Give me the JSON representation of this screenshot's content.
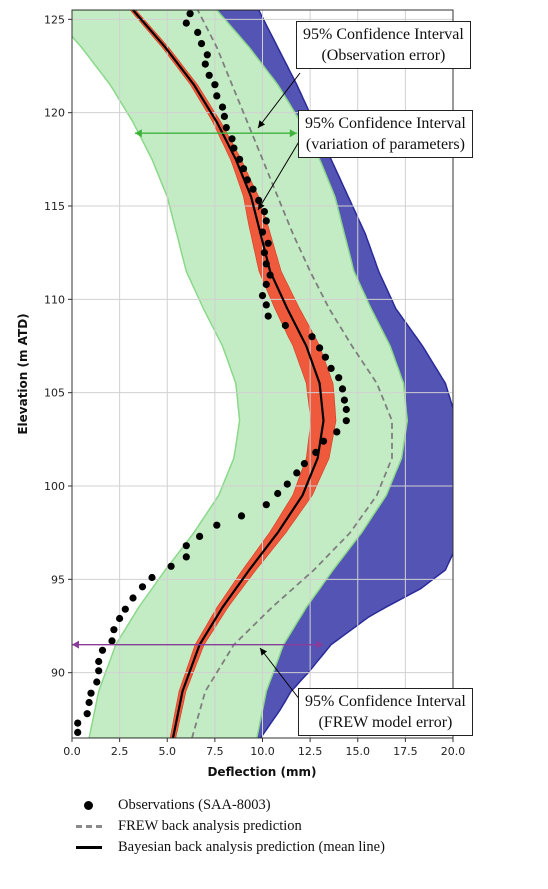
{
  "chart_data": {
    "type": "scatter",
    "xlabel": "Deflection (mm)",
    "ylabel": "Elevation (m ATD)",
    "xlim": [
      0,
      20
    ],
    "ylim": [
      86.5,
      125.5
    ],
    "xticks": [
      "0.0",
      "2.5",
      "5.0",
      "7.5",
      "10.0",
      "12.5",
      "15.0",
      "17.5",
      "20.0"
    ],
    "yticks": [
      "90",
      "95",
      "100",
      "105",
      "110",
      "115",
      "120",
      "125"
    ],
    "grid": true,
    "legend_position": "bottom",
    "series": [
      {
        "name": "Observations (SAA-8003)",
        "kind": "points",
        "color": "#000000",
        "points": [
          [
            6.2,
            125.3
          ],
          [
            6.0,
            124.8
          ],
          [
            6.6,
            124.3
          ],
          [
            6.8,
            123.7
          ],
          [
            7.1,
            123.1
          ],
          [
            7.0,
            122.6
          ],
          [
            7.2,
            122.0
          ],
          [
            7.5,
            121.5
          ],
          [
            7.6,
            120.9
          ],
          [
            7.9,
            120.3
          ],
          [
            8.0,
            119.8
          ],
          [
            8.1,
            119.2
          ],
          [
            8.4,
            118.6
          ],
          [
            8.5,
            118.1
          ],
          [
            8.8,
            117.5
          ],
          [
            9.0,
            117.0
          ],
          [
            9.2,
            116.4
          ],
          [
            9.5,
            115.9
          ],
          [
            9.8,
            115.3
          ],
          [
            10.1,
            114.7
          ],
          [
            10.2,
            114.2
          ],
          [
            10.0,
            113.6
          ],
          [
            10.3,
            113.0
          ],
          [
            10.1,
            112.5
          ],
          [
            10.2,
            111.9
          ],
          [
            10.4,
            111.3
          ],
          [
            10.2,
            110.8
          ],
          [
            10.0,
            110.2
          ],
          [
            10.2,
            109.7
          ],
          [
            10.3,
            109.1
          ],
          [
            11.2,
            108.6
          ],
          [
            12.6,
            108.0
          ],
          [
            13.0,
            107.4
          ],
          [
            13.3,
            106.9
          ],
          [
            13.6,
            106.3
          ],
          [
            14.0,
            105.8
          ],
          [
            14.2,
            105.2
          ],
          [
            14.3,
            104.6
          ],
          [
            14.4,
            104.1
          ],
          [
            14.4,
            103.5
          ],
          [
            13.9,
            102.9
          ],
          [
            13.2,
            102.4
          ],
          [
            12.8,
            101.8
          ],
          [
            12.2,
            101.2
          ],
          [
            11.8,
            100.7
          ],
          [
            11.3,
            100.1
          ],
          [
            10.8,
            99.6
          ],
          [
            10.2,
            99.0
          ],
          [
            8.9,
            98.4
          ],
          [
            7.6,
            97.9
          ],
          [
            6.7,
            97.3
          ],
          [
            6.0,
            96.8
          ],
          [
            6.0,
            96.2
          ],
          [
            5.2,
            95.7
          ],
          [
            4.2,
            95.1
          ],
          [
            3.7,
            94.6
          ],
          [
            3.2,
            94.0
          ],
          [
            2.8,
            93.4
          ],
          [
            2.5,
            92.9
          ],
          [
            2.2,
            92.3
          ],
          [
            2.1,
            91.7
          ],
          [
            1.6,
            91.2
          ],
          [
            1.4,
            90.6
          ],
          [
            1.4,
            90.1
          ],
          [
            1.3,
            89.5
          ],
          [
            1.0,
            88.9
          ],
          [
            0.9,
            88.4
          ],
          [
            0.8,
            87.8
          ],
          [
            0.3,
            87.3
          ],
          [
            0.3,
            86.8
          ]
        ]
      },
      {
        "name": "FREW back analysis prediction",
        "kind": "dashed-line",
        "color": "#7f7f7f",
        "points": [
          [
            6.3,
            86.5
          ],
          [
            7.0,
            89
          ],
          [
            8.5,
            91.5
          ],
          [
            10.5,
            93.5
          ],
          [
            12.7,
            95.5
          ],
          [
            14.6,
            97.5
          ],
          [
            16.0,
            99.5
          ],
          [
            16.8,
            101.5
          ],
          [
            16.8,
            103.5
          ],
          [
            16.0,
            105.5
          ],
          [
            14.7,
            107.5
          ],
          [
            13.5,
            109.5
          ],
          [
            12.5,
            111.5
          ],
          [
            11.6,
            113.5
          ],
          [
            10.8,
            115.5
          ],
          [
            10.0,
            117.5
          ],
          [
            9.2,
            119.5
          ],
          [
            8.4,
            121.5
          ],
          [
            7.6,
            123.5
          ],
          [
            6.6,
            125.5
          ]
        ]
      },
      {
        "name": "Bayesian back analysis prediction (mean line)",
        "kind": "line",
        "color": "#000000",
        "points": [
          [
            5.3,
            86.5
          ],
          [
            5.8,
            89
          ],
          [
            6.7,
            91.5
          ],
          [
            7.9,
            93.5
          ],
          [
            9.3,
            95.5
          ],
          [
            10.8,
            97.5
          ],
          [
            12.1,
            99.5
          ],
          [
            12.9,
            101.5
          ],
          [
            13.2,
            103.5
          ],
          [
            13.0,
            105.5
          ],
          [
            12.3,
            107.5
          ],
          [
            11.3,
            109.5
          ],
          [
            10.4,
            111.5
          ],
          [
            9.9,
            113.5
          ],
          [
            9.4,
            115.5
          ],
          [
            8.6,
            117.5
          ],
          [
            7.6,
            119.5
          ],
          [
            6.4,
            121.5
          ],
          [
            4.9,
            123.5
          ],
          [
            3.2,
            125.5
          ]
        ]
      }
    ],
    "bands": [
      {
        "label": "95% Confidence Interval (FREW model error)",
        "color": "#5454b4",
        "center_ref": "FREW back analysis prediction",
        "halfwidth": [
          [
            86.5,
            3.6
          ],
          [
            88,
            4.2
          ],
          [
            90,
            4.8
          ],
          [
            91.5,
            5.1
          ],
          [
            93,
            5.6
          ],
          [
            94.5,
            6.7
          ],
          [
            95.5,
            6.9
          ],
          [
            96.5,
            6.4
          ],
          [
            97.5,
            5.8
          ],
          [
            98.5,
            4.9
          ],
          [
            100,
            4.2
          ],
          [
            101.5,
            3.8
          ],
          [
            103.5,
            3.4
          ],
          [
            105.5,
            3.6
          ],
          [
            107.5,
            3.7
          ],
          [
            109.5,
            3.5
          ],
          [
            111.5,
            3.6
          ],
          [
            113.5,
            3.8
          ],
          [
            115.5,
            3.7
          ],
          [
            117.5,
            3.6
          ],
          [
            119.5,
            3.5
          ],
          [
            121.5,
            3.4
          ],
          [
            123.5,
            3.2
          ],
          [
            125.5,
            3.2
          ]
        ]
      },
      {
        "label": "95% Confidence Interval (Observation error)",
        "color": "#c4ecc4",
        "center_ref": "Bayesian back analysis prediction (mean line)",
        "halfwidth": 4.4
      },
      {
        "label": "95% Confidence Interval (variation of parameters)",
        "color": "#f05a3c",
        "center_ref": "Bayesian back analysis prediction (mean line)",
        "halfwidth": [
          [
            86.5,
            0.15
          ],
          [
            90,
            0.2
          ],
          [
            94,
            0.3
          ],
          [
            98,
            0.45
          ],
          [
            101.5,
            0.6
          ],
          [
            105,
            0.7
          ],
          [
            108,
            0.7
          ],
          [
            111,
            0.6
          ],
          [
            114,
            0.5
          ],
          [
            117,
            0.3
          ],
          [
            120,
            0.2
          ],
          [
            125.5,
            0.15
          ]
        ]
      }
    ],
    "annotations": [
      {
        "id": "obs",
        "lines": [
          "95% Confidence Interval",
          "(Observation error)"
        ]
      },
      {
        "id": "param",
        "lines": [
          "95% Confidence Interval",
          "(variation of parameters)"
        ]
      },
      {
        "id": "frew",
        "lines": [
          "95% Confidence Interval",
          "(FREW model error)"
        ]
      }
    ],
    "arrows": [
      {
        "y": 118.9,
        "x_from": 3.3,
        "x_to": 11.8,
        "color": "#3cb43c"
      },
      {
        "y": 91.5,
        "x_from": 0.0,
        "x_to": 13.2,
        "color": "#8a3c9a"
      }
    ]
  }
}
